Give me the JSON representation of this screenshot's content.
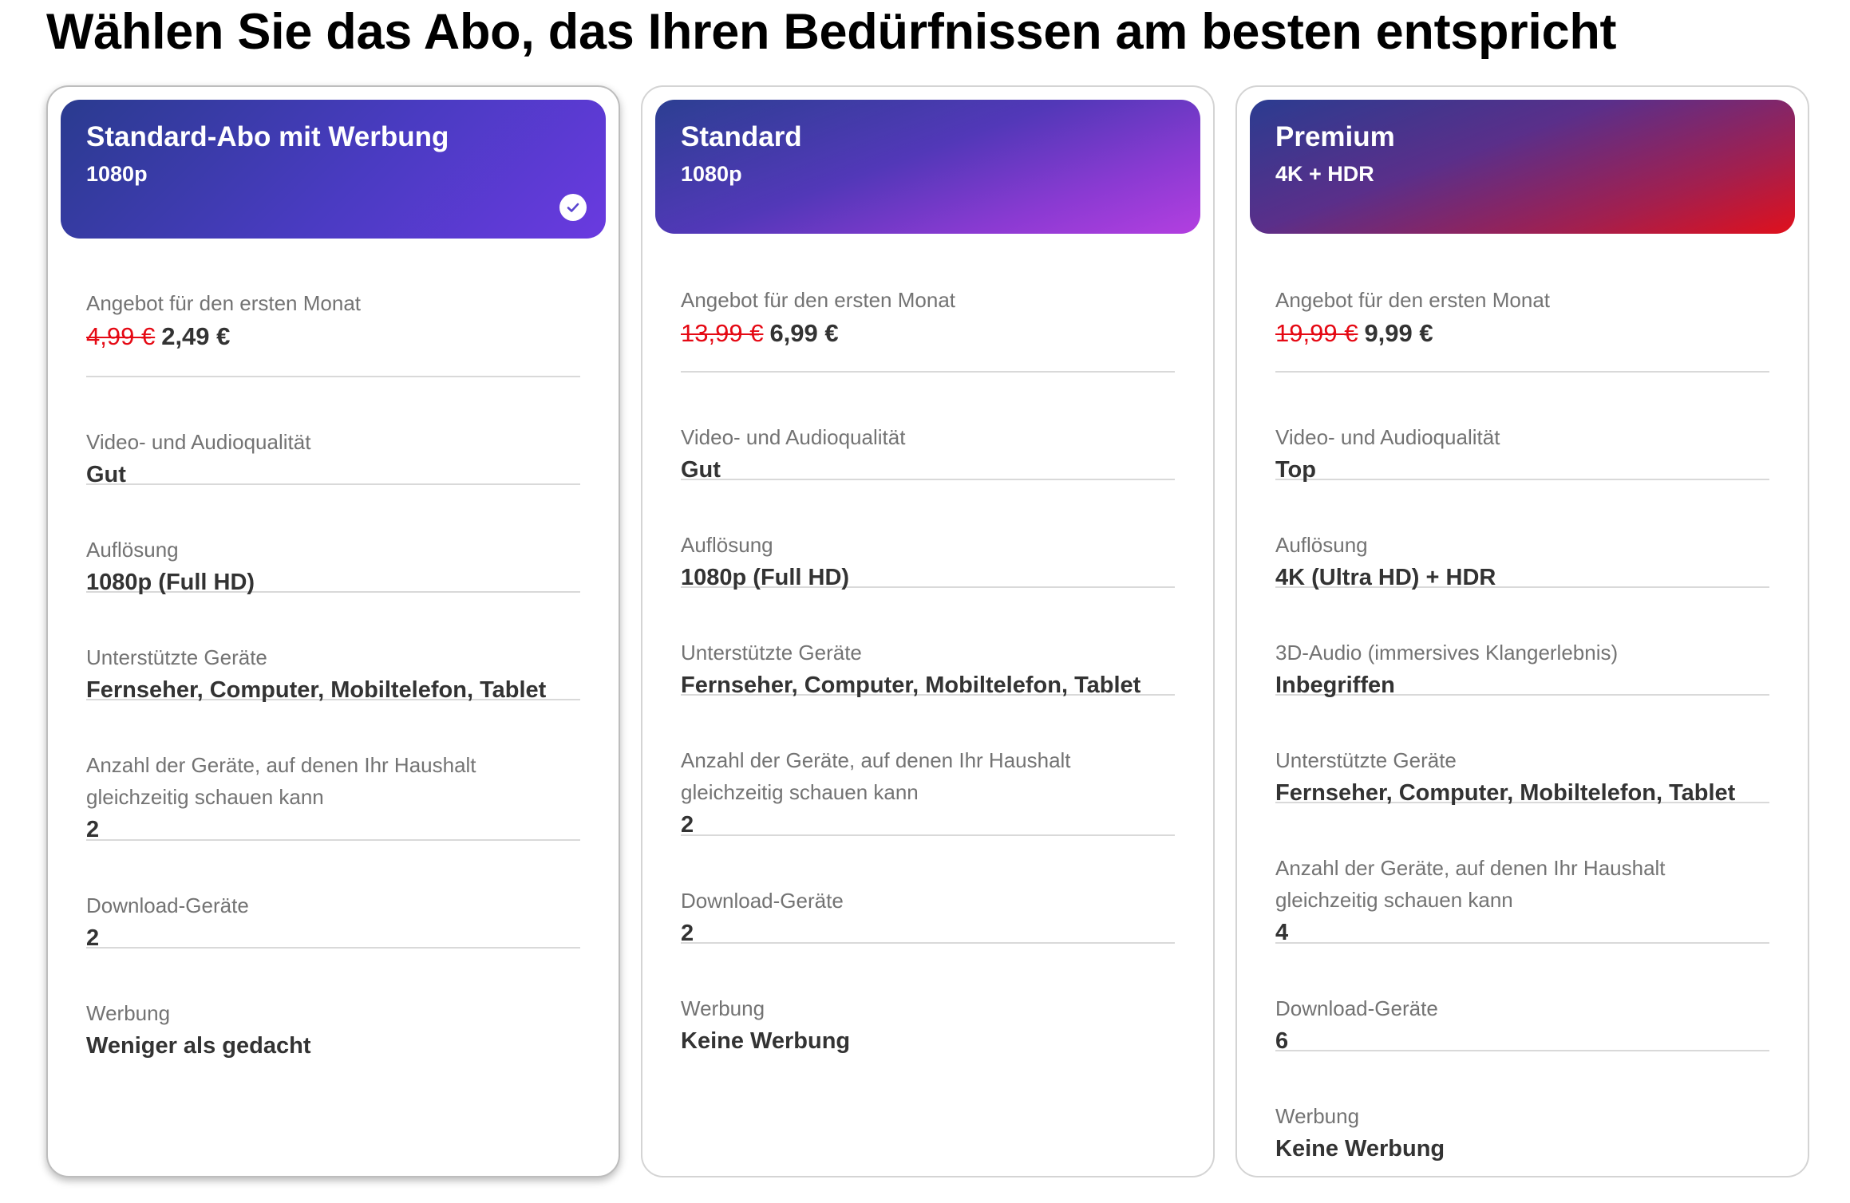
{
  "page": {
    "title": "Wählen Sie das Abo, das Ihren Bedürfnissen am besten entspricht"
  },
  "colors": {
    "price_strike": "#e50914",
    "label": "#737373",
    "value": "#333333"
  },
  "plans": [
    {
      "name": "Standard-Abo mit Werbung",
      "subtitle": "1080p",
      "selected": true,
      "gradient": "linear-gradient(135deg, #2a3b8f 0%, #4a3bc2 55%, #6a3ae0 100%)",
      "features": [
        {
          "label": "Angebot für den ersten Monat",
          "old_price": "4,99 €",
          "new_price": "2,49 €"
        },
        {
          "label": "Video- und Audioqualität",
          "value": "Gut"
        },
        {
          "label": "Auflösung",
          "value": "1080p (Full HD)"
        },
        {
          "label": "Unterstützte Geräte",
          "value": "Fernseher, Computer, Mobiltelefon, Tablet"
        },
        {
          "label": "Anzahl der Geräte, auf denen Ihr Haushalt gleichzeitig schauen kann",
          "value": "2"
        },
        {
          "label": "Download-Geräte",
          "value": "2"
        },
        {
          "label": "Werbung",
          "value": "Weniger als gedacht"
        }
      ]
    },
    {
      "name": "Standard",
      "subtitle": "1080p",
      "selected": false,
      "gradient": "linear-gradient(160deg, #2c3f92 0%, #5238b8 45%, #8a3ad2 75%, #b33fe0 100%)",
      "features": [
        {
          "label": "Angebot für den ersten Monat",
          "old_price": "13,99 €",
          "new_price": "6,99 €"
        },
        {
          "label": "Video- und Audioqualität",
          "value": "Gut"
        },
        {
          "label": "Auflösung",
          "value": "1080p (Full HD)"
        },
        {
          "label": "Unterstützte Geräte",
          "value": "Fernseher, Computer, Mobiltelefon, Tablet"
        },
        {
          "label": "Anzahl der Geräte, auf denen Ihr Haushalt gleichzeitig schauen kann",
          "value": "2"
        },
        {
          "label": "Download-Geräte",
          "value": "2"
        },
        {
          "label": "Werbung",
          "value": "Keine Werbung"
        }
      ]
    },
    {
      "name": "Premium",
      "subtitle": "4K + HDR",
      "selected": false,
      "gradient": "linear-gradient(160deg, #2b3c90 0%, #5a2f8a 40%, #a31f4e 75%, #e0101c 100%)",
      "features": [
        {
          "label": "Angebot für den ersten Monat",
          "old_price": "19,99 €",
          "new_price": "9,99 €"
        },
        {
          "label": "Video- und Audioqualität",
          "value": "Top"
        },
        {
          "label": "Auflösung",
          "value": "4K (Ultra HD) + HDR"
        },
        {
          "label": "3D-Audio (immersives Klangerlebnis)",
          "value": "Inbegriffen"
        },
        {
          "label": "Unterstützte Geräte",
          "value": "Fernseher, Computer, Mobiltelefon, Tablet"
        },
        {
          "label": "Anzahl der Geräte, auf denen Ihr Haushalt gleichzeitig schauen kann",
          "value": "4"
        },
        {
          "label": "Download-Geräte",
          "value": "6"
        },
        {
          "label": "Werbung",
          "value": "Keine Werbung"
        }
      ]
    }
  ]
}
